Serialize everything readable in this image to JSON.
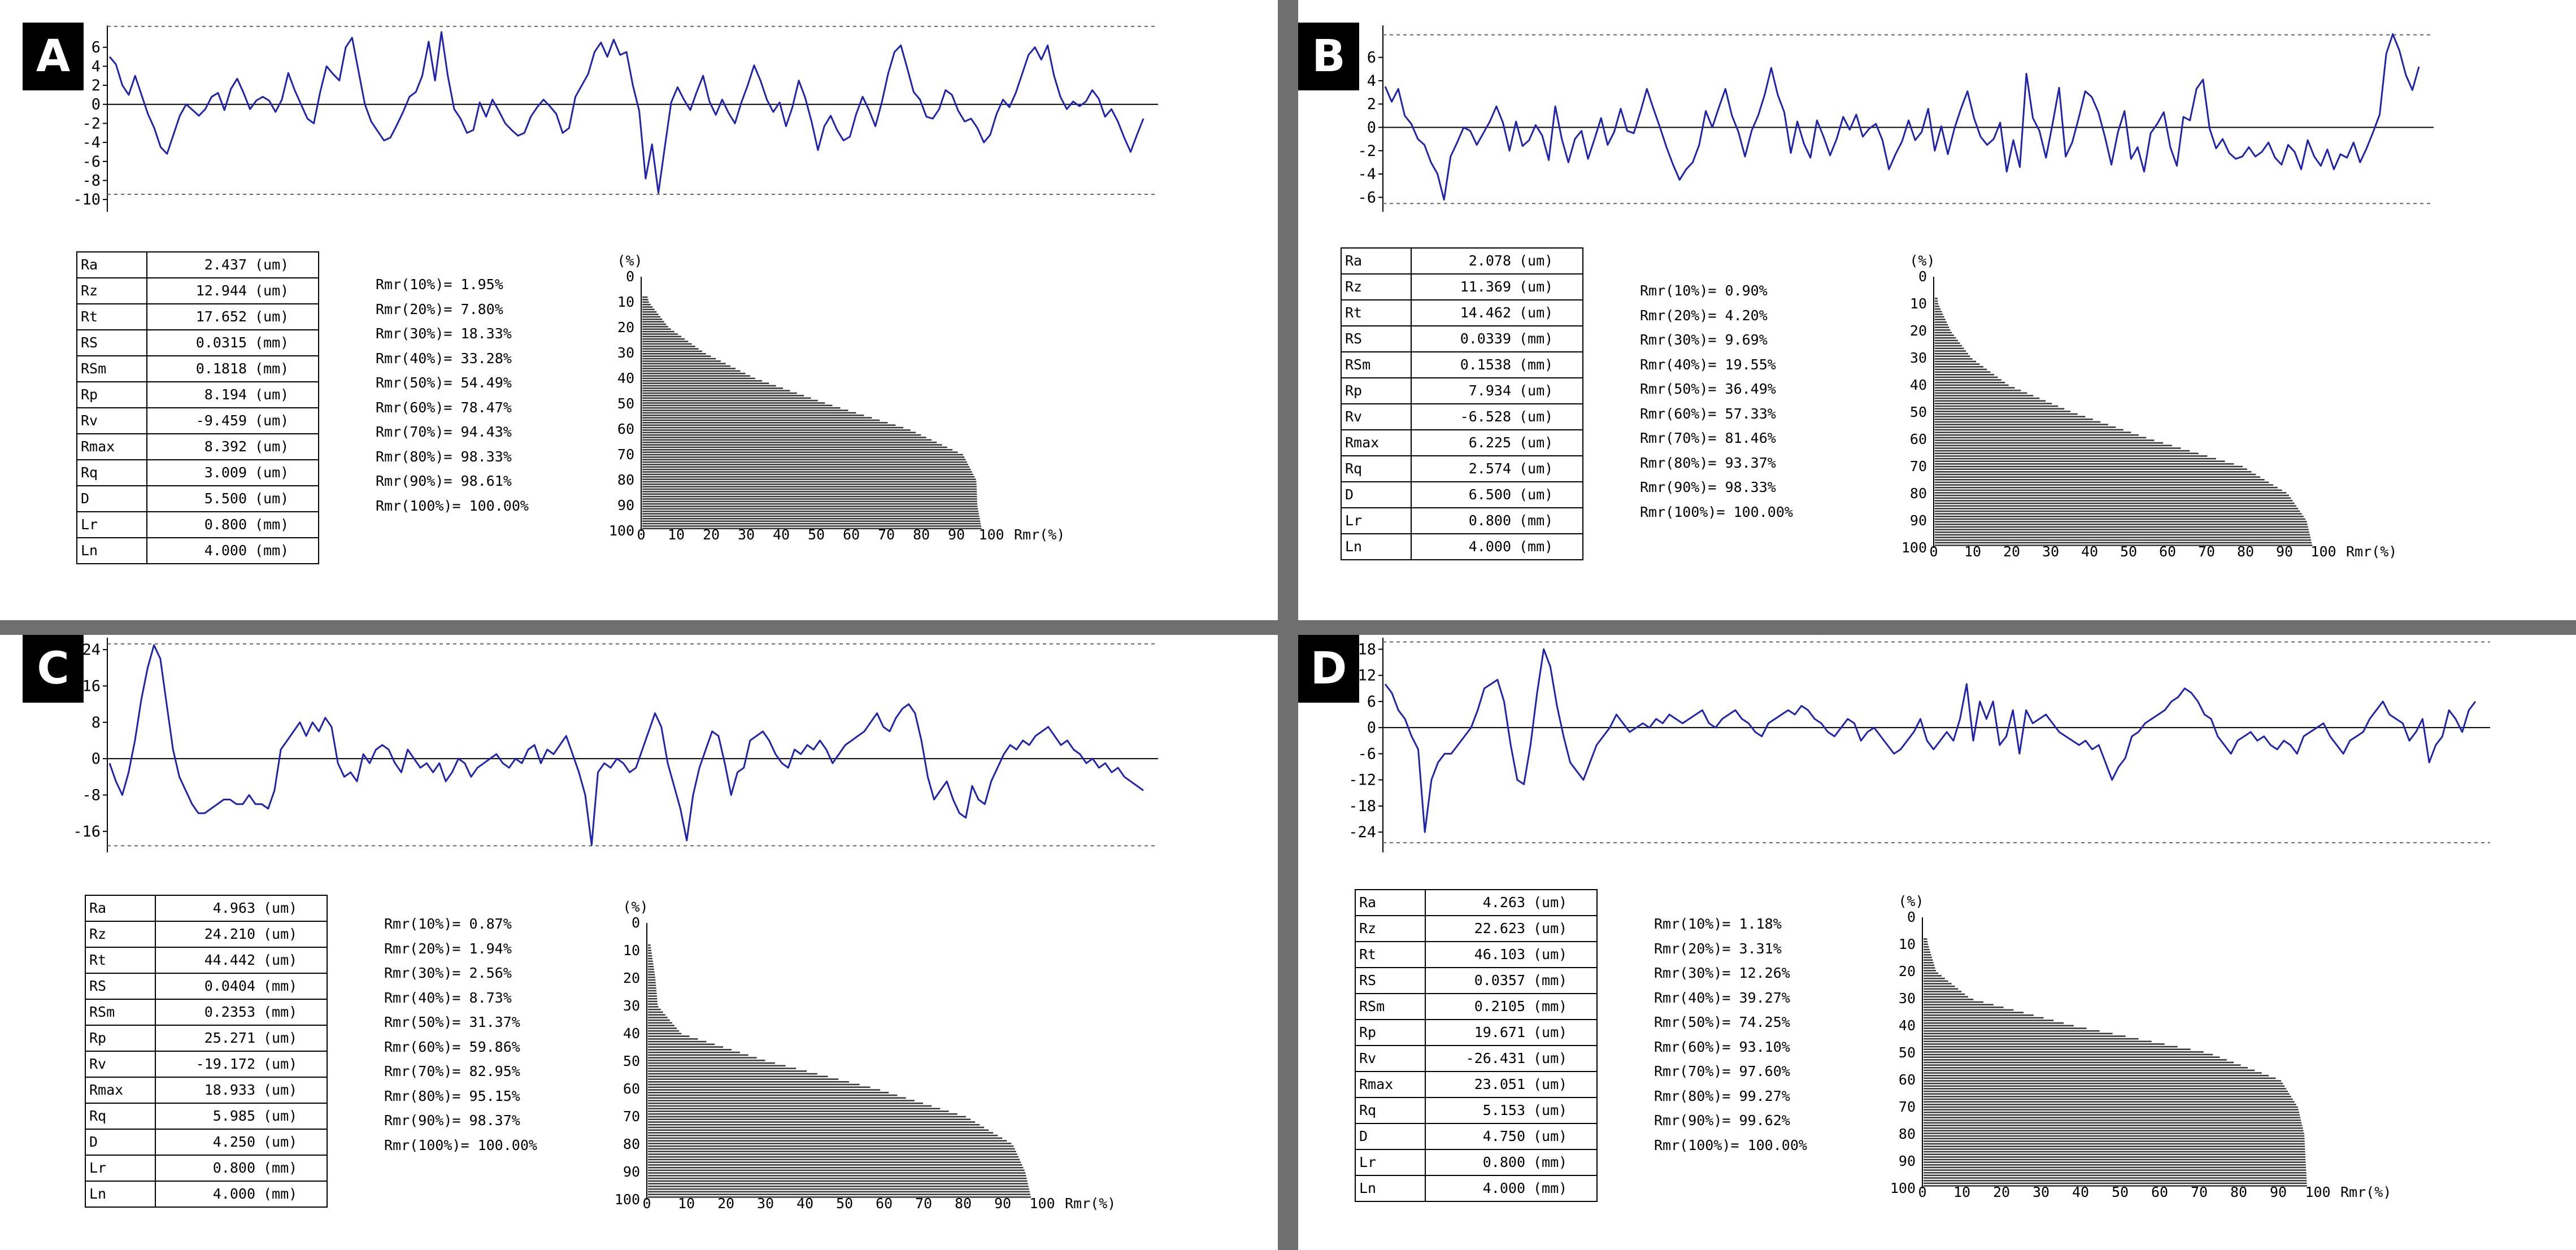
{
  "chart_data": [
    {
      "type": "line",
      "panel": "A",
      "title": "",
      "profile": {
        "yticks": [
          "6",
          "4",
          "2",
          "0",
          "-2",
          "-4",
          "-6",
          "-8",
          "-10"
        ],
        "ylim": [
          -11,
          8
        ],
        "upper_limit": 8.194,
        "lower_limit": -9.459,
        "values": [
          5,
          4.2,
          2,
          1,
          3,
          1,
          -1,
          -2.5,
          -4.5,
          -5.2,
          -3.2,
          -1.2,
          0,
          -0.6,
          -1.2,
          -0.5,
          0.8,
          1.2,
          -0.6,
          1.6,
          2.7,
          1.2,
          -0.5,
          0.4,
          0.8,
          0.4,
          -0.8,
          0.5,
          3.3,
          1.5,
          0,
          -1.5,
          -2,
          1.3,
          4,
          3.2,
          2.5,
          6,
          7,
          3.5,
          0,
          -1.8,
          -2.8,
          -3.8,
          -3.5,
          -2.2,
          -0.8,
          0.8,
          1.3,
          3,
          6.6,
          2.5,
          7.6,
          3,
          -0.5,
          -1.5,
          -3,
          -2.7,
          0.2,
          -1.3,
          0.5,
          -0.7,
          -2,
          -2.7,
          -3.3,
          -3,
          -1.3,
          -0.3,
          0.5,
          -0.2,
          -1,
          -3,
          -2.5,
          0.8,
          2,
          3.2,
          5.5,
          6.5,
          5,
          6.8,
          5.2,
          5.5,
          2,
          -0.7,
          -7.8,
          -4.2,
          -9.3,
          -4.5,
          0.2,
          1.8,
          0.5,
          -0.6,
          1.3,
          3,
          0.3,
          -1.1,
          0.5,
          -0.9,
          -2,
          0.2,
          2,
          4.1,
          2.5,
          0.5,
          -0.8,
          0.2,
          -2.3,
          -0.3,
          2.5,
          0.7,
          -1.8,
          -4.8,
          -2.3,
          -1.2,
          -2.7,
          -3.8,
          -3.4,
          -1,
          0.8,
          -0.6,
          -2.3,
          0.2,
          3.2,
          5.5,
          6.2,
          3.8,
          1.3,
          0.5,
          -1.3,
          -1.5,
          -0.5,
          1.5,
          1,
          -0.7,
          -1.8,
          -1.5,
          -2.5,
          -4,
          -3.2,
          -1,
          0.5,
          -0.3,
          1.2,
          3.2,
          5.2,
          6,
          4.7,
          6.2,
          3,
          0.8,
          -0.5,
          0.3,
          -0.2,
          0.3,
          1.5,
          0.6,
          -1.3,
          -0.5,
          -1.8,
          -3.5,
          -5,
          -3.2,
          -1.5
        ]
      },
      "table": [
        [
          "Ra",
          "2.437",
          "(um)"
        ],
        [
          "Rz",
          "12.944",
          "(um)"
        ],
        [
          "Rt",
          "17.652",
          "(um)"
        ],
        [
          "RS",
          "0.0315",
          "(mm)"
        ],
        [
          "RSm",
          "0.1818",
          "(mm)"
        ],
        [
          "Rp",
          "8.194",
          "(um)"
        ],
        [
          "Rv",
          "-9.459",
          "(um)"
        ],
        [
          "Rmax",
          "8.392",
          "(um)"
        ],
        [
          "Rq",
          "3.009",
          "(um)"
        ],
        [
          "D",
          "5.500",
          "(um)"
        ],
        [
          "Lr",
          "0.800",
          "(mm)"
        ],
        [
          "Ln",
          "4.000",
          "(mm)"
        ]
      ],
      "rmr_list": [
        [
          "Rmr(10%)=",
          "1.95%"
        ],
        [
          "Rmr(20%)=",
          "7.80%"
        ],
        [
          "Rmr(30%)=",
          "18.33%"
        ],
        [
          "Rmr(40%)=",
          "33.28%"
        ],
        [
          "Rmr(50%)=",
          "54.49%"
        ],
        [
          "Rmr(60%)=",
          "78.47%"
        ],
        [
          "Rmr(70%)=",
          "94.43%"
        ],
        [
          "Rmr(80%)=",
          "98.33%"
        ],
        [
          "Rmr(90%)=",
          "98.61%"
        ],
        [
          "Rmr(100%)=",
          "100.00%"
        ]
      ],
      "abbott": {
        "ylabel": "(%)",
        "xlabel": "Rmr(%)",
        "ticks": [
          "0",
          "10",
          "20",
          "30",
          "40",
          "50",
          "60",
          "70",
          "80",
          "90",
          "100"
        ],
        "rmr_values": [
          0,
          1.95,
          7.8,
          18.33,
          33.28,
          54.49,
          78.47,
          94.43,
          98.33,
          98.61,
          100
        ]
      }
    },
    {
      "type": "line",
      "panel": "B",
      "title": "",
      "profile": {
        "yticks": [
          "6",
          "4",
          "2",
          "0",
          "-2",
          "-4",
          "-6"
        ],
        "ylim": [
          -7,
          8.5
        ],
        "upper_limit": 7.934,
        "lower_limit": -6.528,
        "values": [
          3.5,
          2.2,
          3.3,
          1,
          0.3,
          -1,
          -1.5,
          -3,
          -4,
          -6.2,
          -2.5,
          -1.3,
          0,
          -0.3,
          -1.5,
          -0.5,
          0.5,
          1.8,
          0.4,
          -2,
          0.5,
          -1.6,
          -1.1,
          0.2,
          -0.7,
          -2.8,
          1.8,
          -1,
          -3,
          -1,
          -0.3,
          -2.7,
          -1,
          0.8,
          -1.5,
          -0.4,
          1.6,
          -0.3,
          -0.5,
          1.3,
          3.3,
          1.6,
          0,
          -1.7,
          -3.2,
          -4.5,
          -3.6,
          -3,
          -1.5,
          1.4,
          0,
          1.7,
          3.3,
          1,
          -0.4,
          -2.5,
          -0.3,
          1,
          2.8,
          5.1,
          2.8,
          1.3,
          -2.2,
          0.5,
          -1.4,
          -2.6,
          0.6,
          -0.8,
          -2.4,
          -1,
          0.9,
          -0.2,
          1.1,
          -0.8,
          -0.1,
          0.3,
          -1.1,
          -3.6,
          -2.3,
          -1.2,
          0.6,
          -1.1,
          -0.4,
          1.6,
          -2,
          0.1,
          -2.3,
          -0.1,
          1.6,
          3.1,
          0.8,
          -0.8,
          -1.5,
          -1,
          0.4,
          -3.8,
          -1.1,
          -3.4,
          4.6,
          0.8,
          -0.3,
          -2.6,
          0.3,
          3.4,
          -2.5,
          -1.3,
          0.8,
          3.1,
          2.6,
          1.3,
          -0.8,
          -3.2,
          -0.4,
          1.4,
          -2.7,
          -1.7,
          -3.8,
          -0.5,
          0.3,
          1.3,
          -1.7,
          -3.3,
          0.9,
          0.6,
          3.3,
          4.1,
          -0.1,
          -1.8,
          -1,
          -2.2,
          -2.7,
          -2.5,
          -1.7,
          -2.5,
          -2.1,
          -1.3,
          -2.6,
          -3.2,
          -1.5,
          -2.1,
          -3.6,
          -1.1,
          -2.5,
          -3.3,
          -1.9,
          -3.6,
          -2.3,
          -2.6,
          -1.3,
          -3,
          -1.8,
          -0.4,
          1.1,
          6.3,
          8,
          6.6,
          4.5,
          3.2,
          5.2
        ]
      },
      "table": [
        [
          "Ra",
          "2.078",
          "(um)"
        ],
        [
          "Rz",
          "11.369",
          "(um)"
        ],
        [
          "Rt",
          "14.462",
          "(um)"
        ],
        [
          "RS",
          "0.0339",
          "(mm)"
        ],
        [
          "RSm",
          "0.1538",
          "(mm)"
        ],
        [
          "Rp",
          "7.934",
          "(um)"
        ],
        [
          "Rv",
          "-6.528",
          "(um)"
        ],
        [
          "Rmax",
          "6.225",
          "(um)"
        ],
        [
          "Rq",
          "2.574",
          "(um)"
        ],
        [
          "D",
          "6.500",
          "(um)"
        ],
        [
          "Lr",
          "0.800",
          "(mm)"
        ],
        [
          "Ln",
          "4.000",
          "(mm)"
        ]
      ],
      "rmr_list": [
        [
          "Rmr(10%)=",
          "0.90%"
        ],
        [
          "Rmr(20%)=",
          "4.20%"
        ],
        [
          "Rmr(30%)=",
          "9.69%"
        ],
        [
          "Rmr(40%)=",
          "19.55%"
        ],
        [
          "Rmr(50%)=",
          "36.49%"
        ],
        [
          "Rmr(60%)=",
          "57.33%"
        ],
        [
          "Rmr(70%)=",
          "81.46%"
        ],
        [
          "Rmr(80%)=",
          "93.37%"
        ],
        [
          "Rmr(90%)=",
          "98.33%"
        ],
        [
          "Rmr(100%)=",
          "100.00%"
        ]
      ],
      "abbott": {
        "ylabel": "(%)",
        "xlabel": "Rmr(%)",
        "ticks": [
          "0",
          "10",
          "20",
          "30",
          "40",
          "50",
          "60",
          "70",
          "80",
          "90",
          "100"
        ],
        "rmr_values": [
          0,
          0.9,
          4.2,
          9.69,
          19.55,
          36.49,
          57.33,
          81.46,
          93.37,
          98.33,
          100
        ]
      }
    },
    {
      "type": "line",
      "panel": "C",
      "title": "",
      "profile": {
        "yticks": [
          "24",
          "16",
          "8",
          "0",
          "-8",
          "-16"
        ],
        "ylim": [
          -20,
          26
        ],
        "upper_limit": 25.271,
        "lower_limit": -19.172,
        "values": [
          -1,
          -5,
          -8,
          -3,
          4,
          13,
          20,
          25,
          22,
          12,
          2,
          -4,
          -7,
          -10,
          -12,
          -12,
          -11,
          -10,
          -9,
          -9,
          -10,
          -10,
          -8,
          -10,
          -10,
          -11,
          -7,
          2,
          4,
          6,
          8,
          5,
          8,
          6,
          9,
          7,
          -1,
          -4,
          -3,
          -5,
          1,
          -1,
          2,
          3,
          2,
          -1,
          -3,
          2,
          0,
          -2,
          -1,
          -3,
          -1,
          -5,
          -3,
          0,
          -1,
          -4,
          -2,
          -1,
          0,
          1,
          -1,
          -2,
          0,
          -1,
          2,
          3,
          -1,
          2,
          1,
          3,
          5,
          1,
          -3,
          -8,
          -19,
          -3,
          -1,
          -2,
          0,
          -1,
          -3,
          -2,
          2,
          6,
          10,
          7,
          -1,
          -6,
          -11,
          -18,
          -8,
          -2,
          2,
          6,
          5,
          -1,
          -8,
          -3,
          -2,
          4,
          5,
          6,
          4,
          1,
          -1,
          -2,
          2,
          1,
          3,
          2,
          4,
          2,
          -1,
          1,
          3,
          4,
          5,
          6,
          8,
          10,
          7,
          6,
          9,
          11,
          12,
          10,
          4,
          -4,
          -9,
          -7,
          -5,
          -9,
          -12,
          -13,
          -6,
          -9,
          -10,
          -5,
          -2,
          1,
          3,
          2,
          4,
          3,
          5,
          6,
          7,
          5,
          3,
          4,
          2,
          1,
          -1,
          0,
          -2,
          -1,
          -3,
          -2,
          -4,
          -5,
          -6,
          -7
        ]
      },
      "table": [
        [
          "Ra",
          "4.963",
          "(um)"
        ],
        [
          "Rz",
          "24.210",
          "(um)"
        ],
        [
          "Rt",
          "44.442",
          "(um)"
        ],
        [
          "RS",
          "0.0404",
          "(mm)"
        ],
        [
          "RSm",
          "0.2353",
          "(mm)"
        ],
        [
          "Rp",
          "25.271",
          "(um)"
        ],
        [
          "Rv",
          "-19.172",
          "(um)"
        ],
        [
          "Rmax",
          "18.933",
          "(um)"
        ],
        [
          "Rq",
          "5.985",
          "(um)"
        ],
        [
          "D",
          "4.250",
          "(um)"
        ],
        [
          "Lr",
          "0.800",
          "(mm)"
        ],
        [
          "Ln",
          "4.000",
          "(mm)"
        ]
      ],
      "rmr_list": [
        [
          "Rmr(10%)=",
          "0.87%"
        ],
        [
          "Rmr(20%)=",
          "1.94%"
        ],
        [
          "Rmr(30%)=",
          "2.56%"
        ],
        [
          "Rmr(40%)=",
          "8.73%"
        ],
        [
          "Rmr(50%)=",
          "31.37%"
        ],
        [
          "Rmr(60%)=",
          "59.86%"
        ],
        [
          "Rmr(70%)=",
          "82.95%"
        ],
        [
          "Rmr(80%)=",
          "95.15%"
        ],
        [
          "Rmr(90%)=",
          "98.37%"
        ],
        [
          "Rmr(100%)=",
          "100.00%"
        ]
      ],
      "abbott": {
        "ylabel": "(%)",
        "xlabel": "Rmr(%)",
        "ticks": [
          "0",
          "10",
          "20",
          "30",
          "40",
          "50",
          "60",
          "70",
          "80",
          "90",
          "100"
        ],
        "rmr_values": [
          0,
          0.87,
          1.94,
          2.56,
          8.73,
          31.37,
          59.86,
          82.95,
          95.15,
          98.37,
          100
        ]
      }
    },
    {
      "type": "line",
      "panel": "D",
      "title": "",
      "profile": {
        "yticks": [
          "18",
          "12",
          "6",
          "0",
          "-6",
          "-12",
          "-18",
          "-24"
        ],
        "ylim": [
          -28,
          20
        ],
        "upper_limit": 19.671,
        "lower_limit": -26.431,
        "values": [
          10,
          8,
          4,
          2,
          -2,
          -5,
          -24,
          -12,
          -8,
          -6,
          -6,
          -4,
          -2,
          0,
          4,
          9,
          10,
          11,
          6,
          -4,
          -12,
          -13,
          -4,
          8,
          18,
          14,
          5,
          -2,
          -8,
          -10,
          -12,
          -8,
          -4,
          -2,
          0,
          3,
          1,
          -1,
          0,
          1,
          0,
          2,
          1,
          3,
          2,
          1,
          2,
          3,
          4,
          1,
          0,
          2,
          3,
          4,
          2,
          1,
          -1,
          -2,
          1,
          2,
          3,
          4,
          3,
          5,
          4,
          2,
          1,
          -1,
          -2,
          0,
          2,
          1,
          -3,
          -1,
          0,
          -2,
          -4,
          -6,
          -5,
          -3,
          -1,
          2,
          -3,
          -5,
          -3,
          -1,
          -3,
          2,
          10,
          -3,
          6,
          2,
          6,
          -4,
          -2,
          4,
          -6,
          4,
          1,
          2,
          3,
          1,
          -1,
          -2,
          -3,
          -4,
          -3,
          -5,
          -4,
          -8,
          -12,
          -9,
          -7,
          -2,
          -1,
          1,
          2,
          3,
          4,
          6,
          7,
          9,
          8,
          6,
          3,
          2,
          -2,
          -4,
          -6,
          -3,
          -2,
          -1,
          -3,
          -2,
          -4,
          -5,
          -3,
          -4,
          -6,
          -2,
          -1,
          0,
          1,
          -2,
          -4,
          -6,
          -3,
          -2,
          -1,
          2,
          4,
          6,
          3,
          2,
          1,
          -3,
          -1,
          2,
          -8,
          -4,
          -2,
          4,
          2,
          -1,
          4,
          6
        ]
      },
      "table": [
        [
          "Ra",
          "4.263",
          "(um)"
        ],
        [
          "Rz",
          "22.623",
          "(um)"
        ],
        [
          "Rt",
          "46.103",
          "(um)"
        ],
        [
          "RS",
          "0.0357",
          "(mm)"
        ],
        [
          "RSm",
          "0.2105",
          "(mm)"
        ],
        [
          "Rp",
          "19.671",
          "(um)"
        ],
        [
          "Rv",
          "-26.431",
          "(um)"
        ],
        [
          "Rmax",
          "23.051",
          "(um)"
        ],
        [
          "Rq",
          "5.153",
          "(um)"
        ],
        [
          "D",
          "4.750",
          "(um)"
        ],
        [
          "Lr",
          "0.800",
          "(mm)"
        ],
        [
          "Ln",
          "4.000",
          "(mm)"
        ]
      ],
      "rmr_list": [
        [
          "Rmr(10%)=",
          "1.18%"
        ],
        [
          "Rmr(20%)=",
          "3.31%"
        ],
        [
          "Rmr(30%)=",
          "12.26%"
        ],
        [
          "Rmr(40%)=",
          "39.27%"
        ],
        [
          "Rmr(50%)=",
          "74.25%"
        ],
        [
          "Rmr(60%)=",
          "93.10%"
        ],
        [
          "Rmr(70%)=",
          "97.60%"
        ],
        [
          "Rmr(80%)=",
          "99.27%"
        ],
        [
          "Rmr(90%)=",
          "99.62%"
        ],
        [
          "Rmr(100%)=",
          "100.00%"
        ]
      ],
      "abbott": {
        "ylabel": "(%)",
        "xlabel": "Rmr(%)",
        "ticks": [
          "0",
          "10",
          "20",
          "30",
          "40",
          "50",
          "60",
          "70",
          "80",
          "90",
          "100"
        ],
        "rmr_values": [
          0,
          1.18,
          3.31,
          12.26,
          39.27,
          74.25,
          93.1,
          97.6,
          99.27,
          99.62,
          100
        ]
      }
    }
  ],
  "colors": {
    "profile_line": "#1f24b0",
    "divider": "#6f6f6f",
    "bars": "#3a3a3a"
  }
}
